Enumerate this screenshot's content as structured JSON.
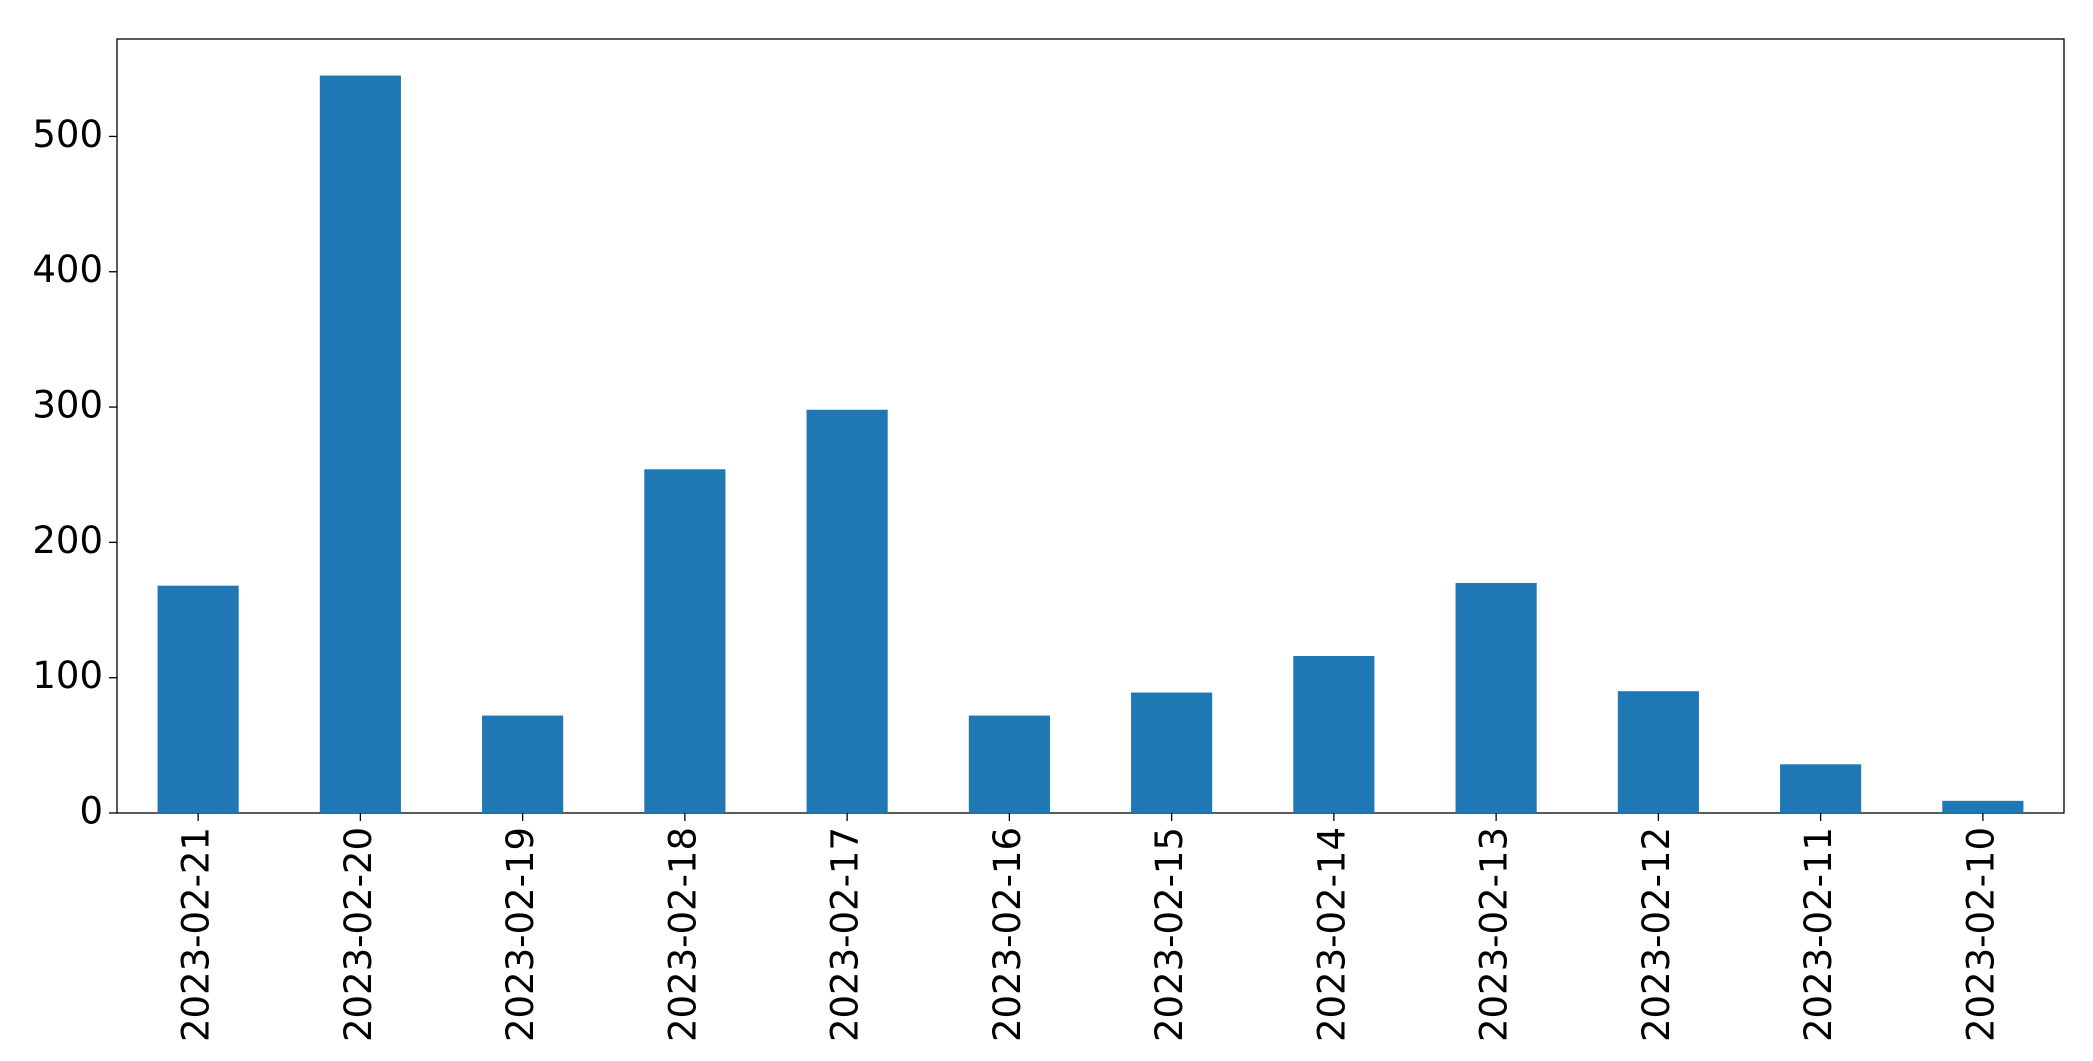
{
  "chart_data": {
    "type": "bar",
    "categories": [
      "2023-02-21",
      "2023-02-20",
      "2023-02-19",
      "2023-02-18",
      "2023-02-17",
      "2023-02-16",
      "2023-02-15",
      "2023-02-14",
      "2023-02-13",
      "2023-02-12",
      "2023-02-11",
      "2023-02-10"
    ],
    "values": [
      168,
      545,
      72,
      254,
      298,
      72,
      89,
      116,
      170,
      90,
      36,
      9
    ],
    "color": "#1f77b4",
    "ylim": [
      0,
      572
    ],
    "yticks": [
      0,
      100,
      200,
      300,
      400,
      500
    ],
    "grid": false
  }
}
